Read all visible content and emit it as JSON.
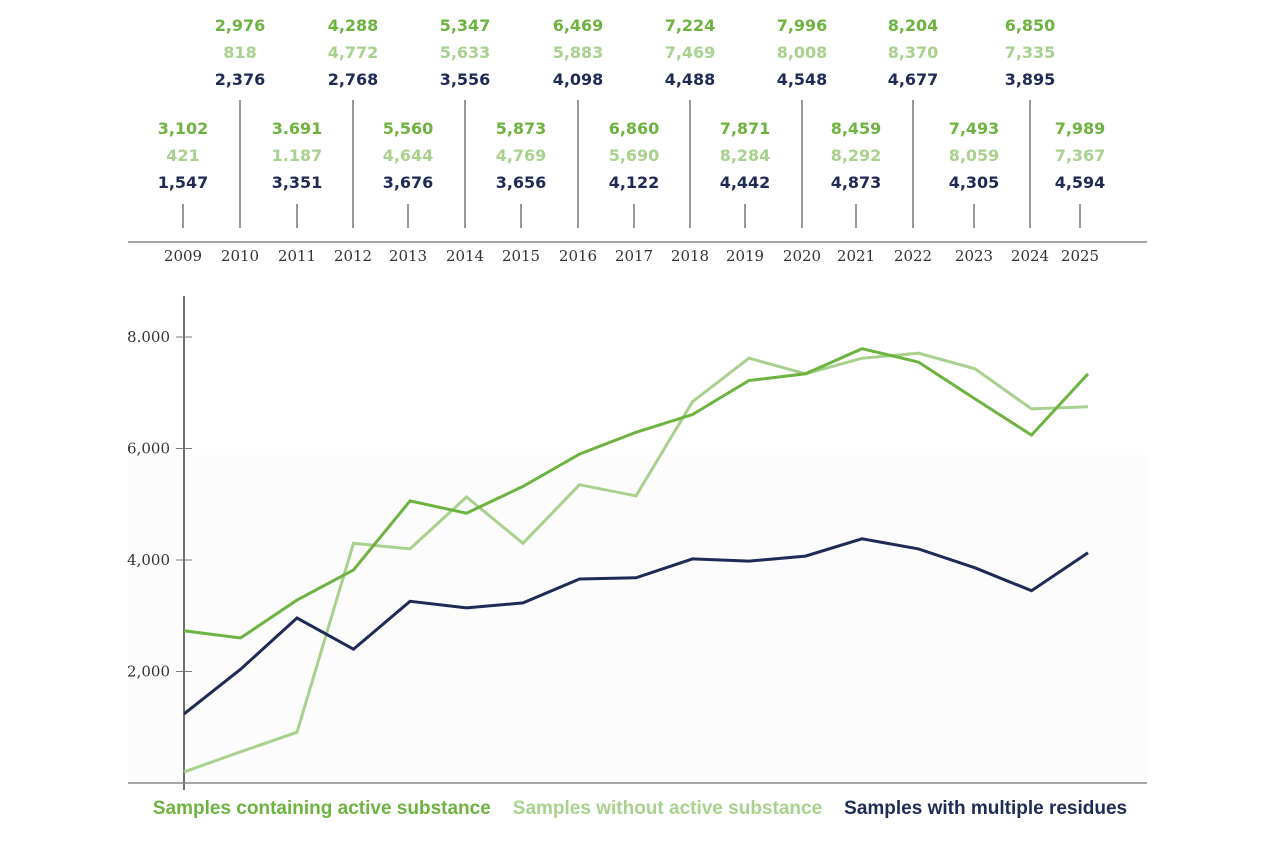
{
  "chart_data": {
    "type": "line",
    "title": "",
    "xlabel": "",
    "ylabel": "",
    "x": [
      2009,
      2010,
      2011,
      2012,
      2013,
      2014,
      2015,
      2016,
      2017,
      2018,
      2019,
      2020,
      2021,
      2022,
      2023,
      2024,
      2025
    ],
    "ylim": [
      0,
      9000
    ],
    "yticks": [
      2000,
      4000,
      6000,
      8000
    ],
    "ytick_labels": [
      "2,000",
      "4,000",
      "6,000",
      "8.000"
    ],
    "grid": false,
    "legend_position": "bottom",
    "series": [
      {
        "name": "Samples containing active substance",
        "color": "#6db33f",
        "values": [
          2730,
          2600,
          3280,
          3820,
          5060,
          4840,
          5320,
          5900,
          6290,
          6610,
          7220,
          7340,
          7790,
          7550,
          6890,
          6240,
          7340
        ],
        "labels": [
          "3,102",
          "2,976",
          "3.691",
          "4,288",
          "5,560",
          "5,347",
          "5,873",
          "6,469",
          "6,860",
          "7,224",
          "7,871",
          "7,996",
          "8,459",
          "8,204",
          "7,493",
          "6,850",
          "7,989"
        ]
      },
      {
        "name": "Samples without active substance",
        "color": "#a9d18e",
        "values": [
          200,
          560,
          910,
          4300,
          4200,
          5130,
          4300,
          5350,
          5150,
          6840,
          7620,
          7340,
          7620,
          7710,
          7430,
          6710,
          6750
        ],
        "labels": [
          "421",
          "818",
          "1.187",
          "4,772",
          "4,644",
          "5,633",
          "4,769",
          "5,883",
          "5,690",
          "7,469",
          "8,284",
          "8,008",
          "8,292",
          "8,370",
          "8,059",
          "7,335",
          "7,367"
        ]
      },
      {
        "name": "Samples with multiple residues",
        "color": "#1f2a55",
        "values": [
          1240,
          2040,
          2960,
          2400,
          3260,
          3140,
          3230,
          3660,
          3680,
          4020,
          3980,
          4070,
          4380,
          4200,
          3860,
          3450,
          4130
        ],
        "labels": [
          "1,547",
          "2,376",
          "3,351",
          "2,768",
          "3,676",
          "3,556",
          "3,656",
          "4,098",
          "4,122",
          "4,488",
          "4,442",
          "4,548",
          "4,873",
          "4,677",
          "4,305",
          "3,895",
          "4,594"
        ]
      }
    ]
  },
  "legend": {
    "active": "Samples containing active substance",
    "without": "Samples without active substance",
    "multiple": "Samples with multiple residues"
  }
}
